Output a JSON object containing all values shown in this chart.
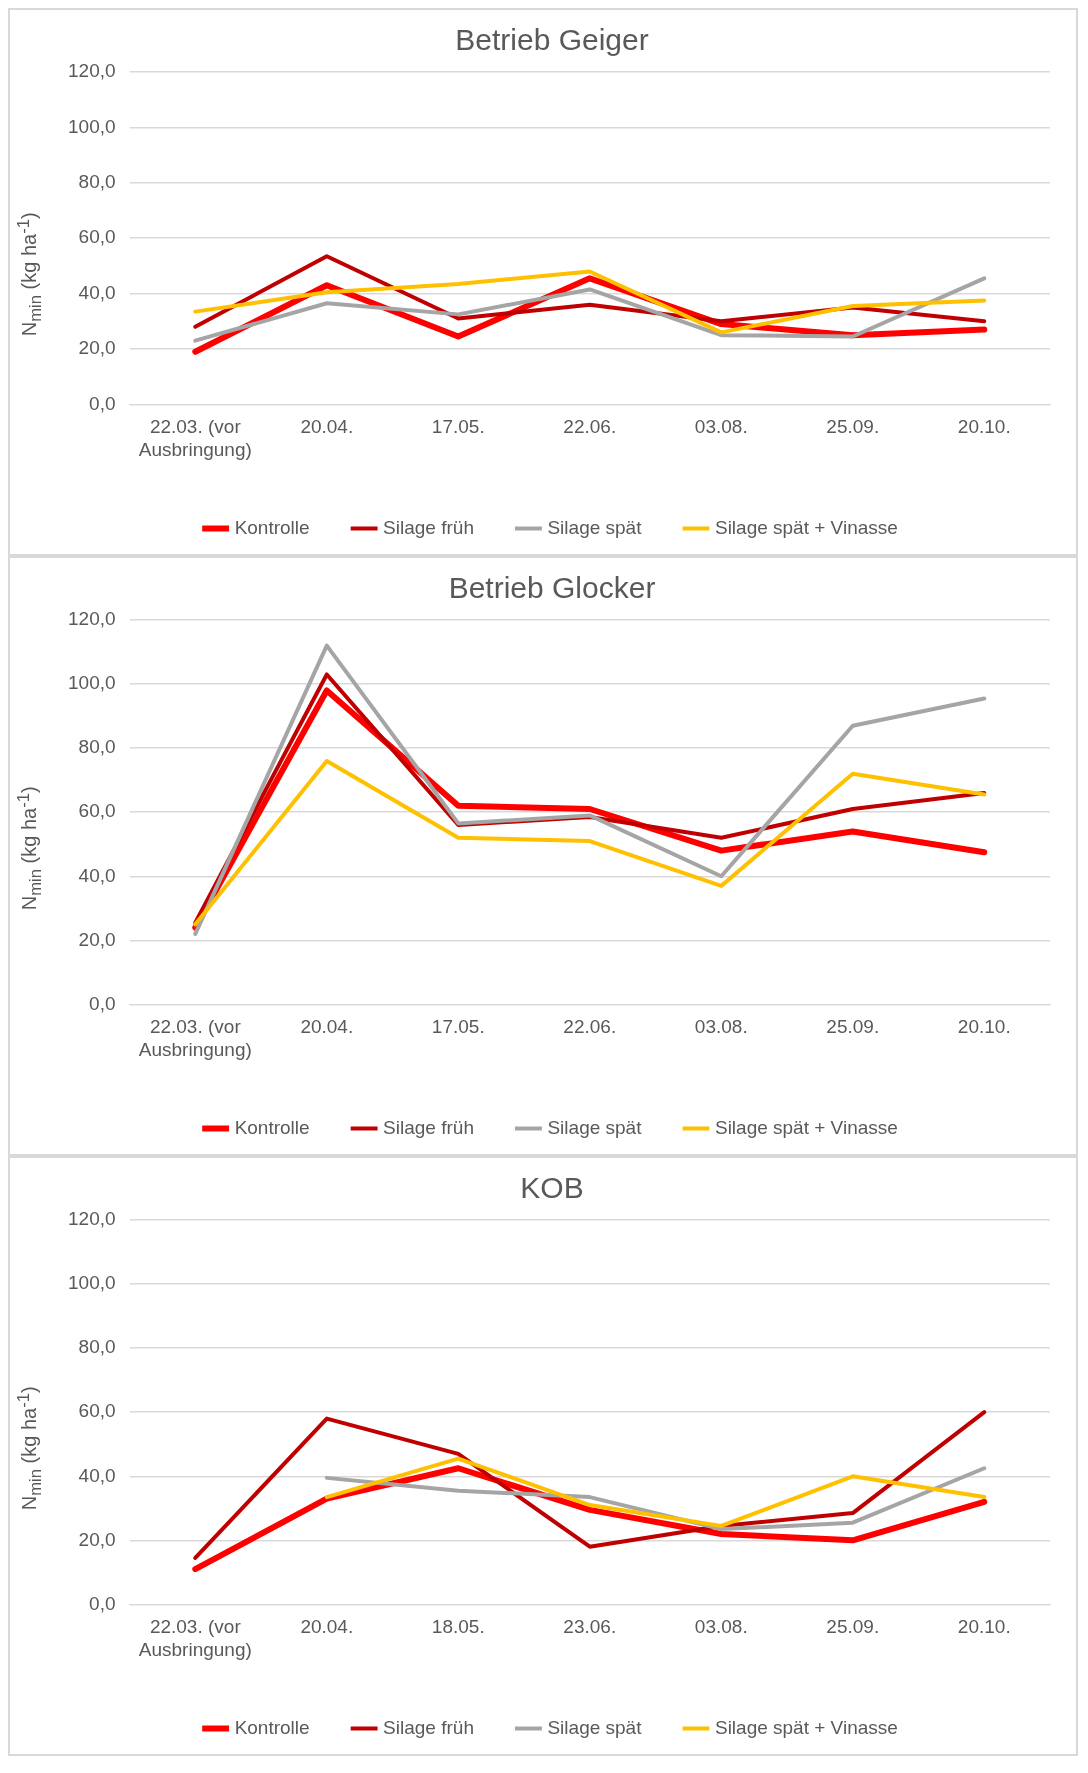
{
  "chart_data": [
    {
      "type": "line",
      "title": "Betrieb Geiger",
      "ylabel": "N$_{min}$ (kg ha$^{-1}$)",
      "categories": [
        "22.03. (vor Ausbringung)",
        "20.04.",
        "17.05.",
        "22.06.",
        "03.08.",
        "25.09.",
        "20.10."
      ],
      "ylim": [
        0,
        120
      ],
      "yticks": [
        {
          "value": 0,
          "label": "0,0"
        },
        {
          "value": 20,
          "label": "20,0"
        },
        {
          "value": 40,
          "label": "40,0"
        },
        {
          "value": 60,
          "label": "60,0"
        },
        {
          "value": 80,
          "label": "80,0"
        },
        {
          "value": 100,
          "label": "100,0"
        },
        {
          "value": 120,
          "label": "120,0"
        }
      ],
      "grid": "y",
      "legend": "bottom",
      "marker": "none",
      "line_style": "solid",
      "series": [
        {
          "name": "Kontrolle",
          "color": "#ff0000",
          "values": [
            19,
            43,
            24.5,
            45.5,
            29,
            25,
            27
          ]
        },
        {
          "name": "Silage früh",
          "color": "#c00000",
          "values": [
            28,
            53.5,
            31,
            36,
            30,
            35,
            30
          ]
        },
        {
          "name": "Silage spät",
          "color": "#a5a5a5",
          "values": [
            23,
            36.5,
            32.5,
            41.5,
            25,
            24.5,
            45.5
          ]
        },
        {
          "name": "Silage spät + Vinasse",
          "color": "#ffc000",
          "values": [
            33.5,
            40.5,
            43.5,
            48,
            26,
            35.5,
            37.5
          ]
        }
      ]
    },
    {
      "type": "line",
      "title": "Betrieb Glocker",
      "ylabel": "N$_{min}$ (kg ha$^{-1}$)",
      "categories": [
        "22.03. (vor Ausbringung)",
        "20.04.",
        "17.05.",
        "22.06.",
        "03.08.",
        "25.09.",
        "20.10."
      ],
      "ylim": [
        0,
        120
      ],
      "yticks": [
        {
          "value": 0,
          "label": "0,0"
        },
        {
          "value": 20,
          "label": "20,0"
        },
        {
          "value": 40,
          "label": "40,0"
        },
        {
          "value": 60,
          "label": "60,0"
        },
        {
          "value": 80,
          "label": "80,0"
        },
        {
          "value": 100,
          "label": "100,0"
        },
        {
          "value": 120,
          "label": "120,0"
        }
      ],
      "grid": "y",
      "legend": "bottom",
      "marker": "none",
      "line_style": "solid",
      "series": [
        {
          "name": "Kontrolle",
          "color": "#ff0000",
          "values": [
            24,
            98,
            62,
            61,
            48,
            54,
            47.5
          ]
        },
        {
          "name": "Silage früh",
          "color": "#c00000",
          "values": [
            25.5,
            103,
            56,
            58.5,
            52,
            61,
            66
          ]
        },
        {
          "name": "Silage spät",
          "color": "#a5a5a5",
          "values": [
            22,
            112,
            56.5,
            59,
            40,
            87,
            95.5
          ]
        },
        {
          "name": "Silage spät + Vinasse",
          "color": "#ffc000",
          "values": [
            25,
            76,
            52,
            51,
            37,
            72,
            65.5
          ]
        }
      ]
    },
    {
      "type": "line",
      "title": "KOB",
      "ylabel": "N$_{min}$ (kg ha$^{-1}$)",
      "categories": [
        "22.03. (vor Ausbringung)",
        "20.04.",
        "18.05.",
        "23.06.",
        "03.08.",
        "25.09.",
        "20.10."
      ],
      "ylim": [
        0,
        120
      ],
      "yticks": [
        {
          "value": 0,
          "label": "0,0"
        },
        {
          "value": 20,
          "label": "20,0"
        },
        {
          "value": 40,
          "label": "40,0"
        },
        {
          "value": 60,
          "label": "60,0"
        },
        {
          "value": 80,
          "label": "80,0"
        },
        {
          "value": 100,
          "label": "100,0"
        },
        {
          "value": 120,
          "label": "120,0"
        }
      ],
      "grid": "y",
      "legend": "bottom",
      "marker": "none",
      "line_style": "solid",
      "series": [
        {
          "name": "Kontrolle",
          "color": "#ff0000",
          "values": [
            11,
            33,
            42.5,
            29.5,
            22,
            20,
            32
          ]
        },
        {
          "name": "Silage früh",
          "color": "#c00000",
          "values": [
            14.5,
            58,
            47,
            18,
            24.5,
            28.5,
            60
          ]
        },
        {
          "name": "Silage spät",
          "color": "#a5a5a5",
          "values": [
            null,
            39.5,
            35.5,
            33.5,
            23.5,
            25.5,
            42.5
          ]
        },
        {
          "name": "Silage spät + Vinasse",
          "color": "#ffc000",
          "values": [
            null,
            33.5,
            45.5,
            31,
            24.5,
            40,
            33.5
          ]
        }
      ]
    }
  ]
}
